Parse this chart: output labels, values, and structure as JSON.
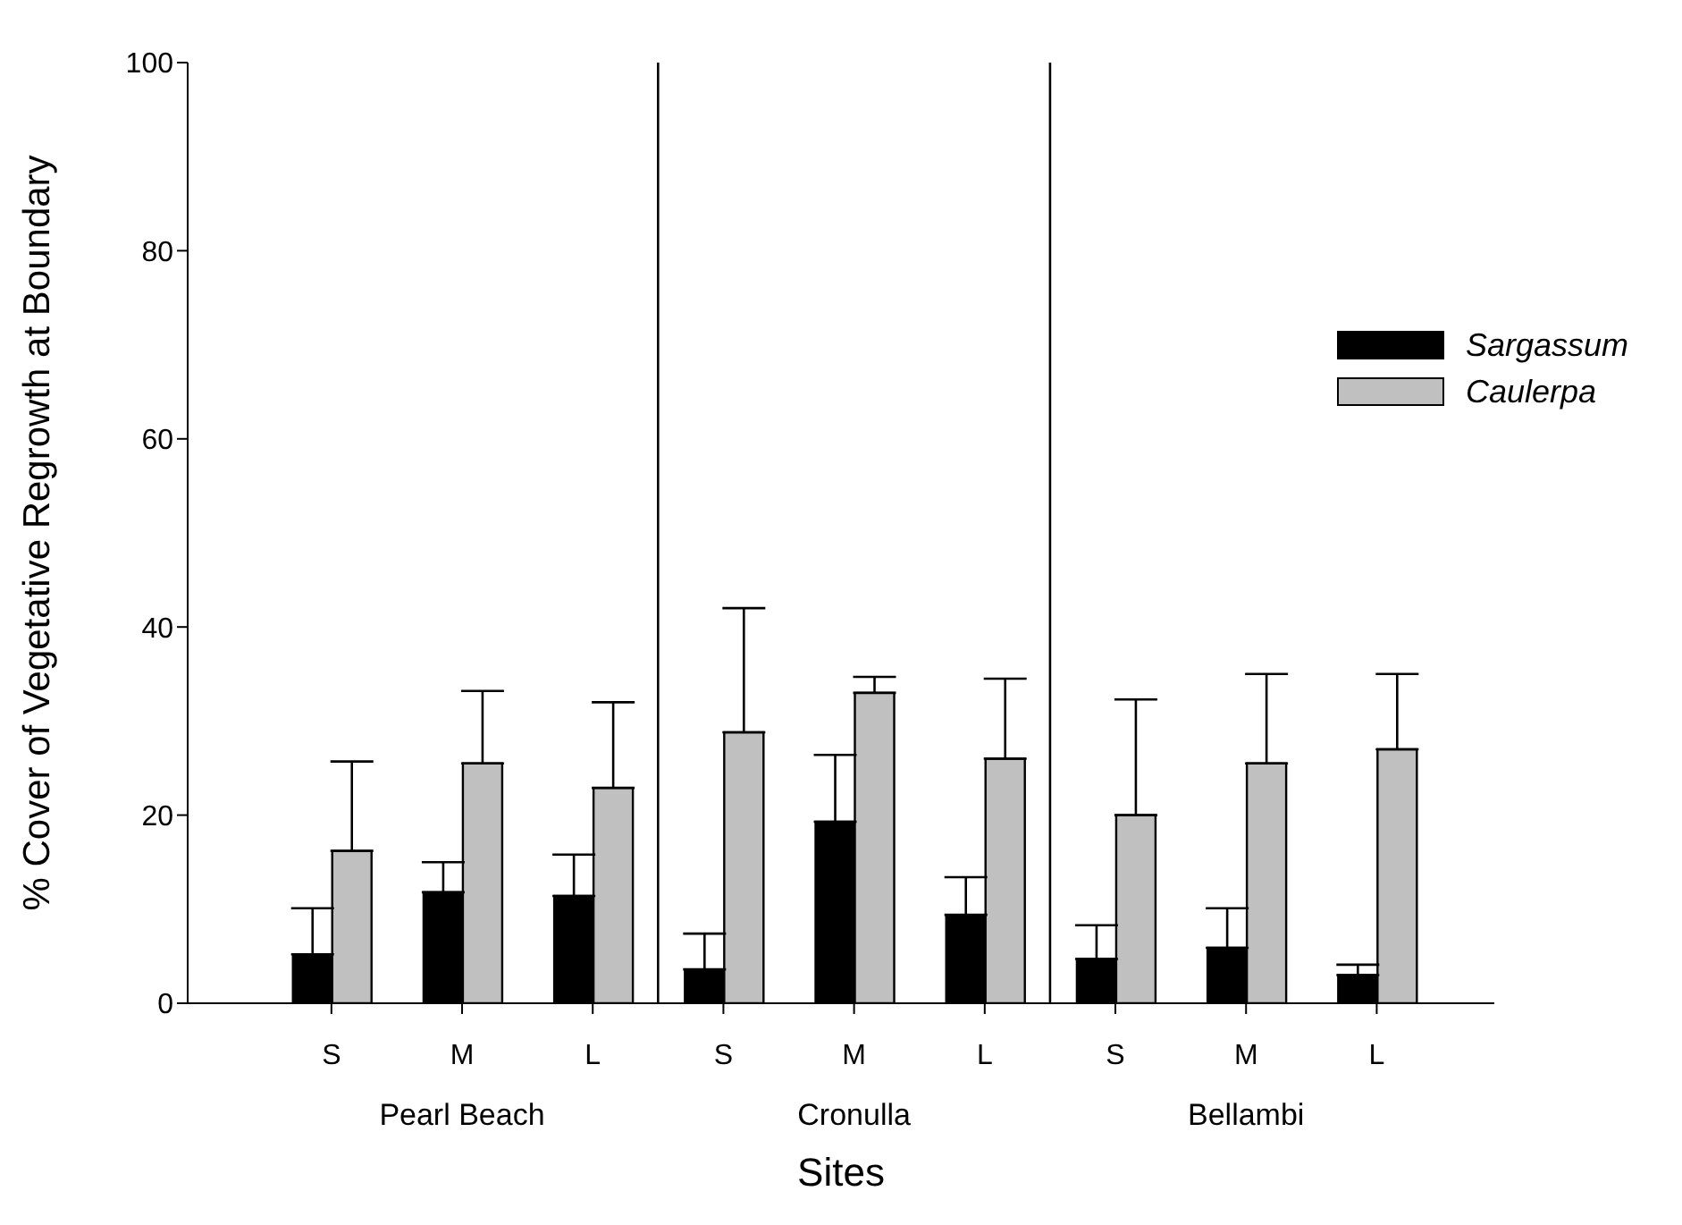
{
  "chart_data": {
    "type": "bar",
    "xlabel": "Sites",
    "ylabel": "% Cover of Vegetative Regrowth at Boundary",
    "categories": [
      "S",
      "M",
      "L",
      "S",
      "M",
      "L",
      "S",
      "M",
      "L"
    ],
    "series": [
      {
        "name": "Sargassum",
        "color": "#000000",
        "values": [
          5.2,
          11.8,
          11.4,
          3.6,
          19.3,
          9.4,
          4.7,
          5.9,
          3.0
        ],
        "errors": [
          [
            5.2,
            10.1
          ],
          [
            11.8,
            15.0
          ],
          [
            11.4,
            15.8
          ],
          [
            3.6,
            7.4
          ],
          [
            19.3,
            26.4
          ],
          [
            9.4,
            13.4
          ],
          [
            4.7,
            8.3
          ],
          [
            5.9,
            10.1
          ],
          [
            3.0,
            4.1
          ]
        ]
      },
      {
        "name": "Caulerpa",
        "color": "#c0c0c0",
        "values": [
          16.2,
          25.5,
          22.9,
          28.8,
          33.0,
          26.0,
          20.0,
          25.5,
          27.0
        ],
        "errors": [
          [
            16.2,
            25.7
          ],
          [
            25.5,
            33.2
          ],
          [
            22.9,
            32.0
          ],
          [
            28.8,
            42.0
          ],
          [
            33.0,
            34.7
          ],
          [
            26.0,
            34.5
          ],
          [
            20.0,
            32.3
          ],
          [
            25.5,
            35.0
          ],
          [
            27.0,
            35.0
          ]
        ]
      }
    ],
    "annotations": [
      "Pearl Beach",
      "Cronulla",
      "Bellambi"
    ],
    "ylim": [
      0,
      100
    ],
    "yticks": [
      0,
      20,
      40,
      60,
      80,
      100
    ],
    "grid": false,
    "legend": "top right"
  }
}
